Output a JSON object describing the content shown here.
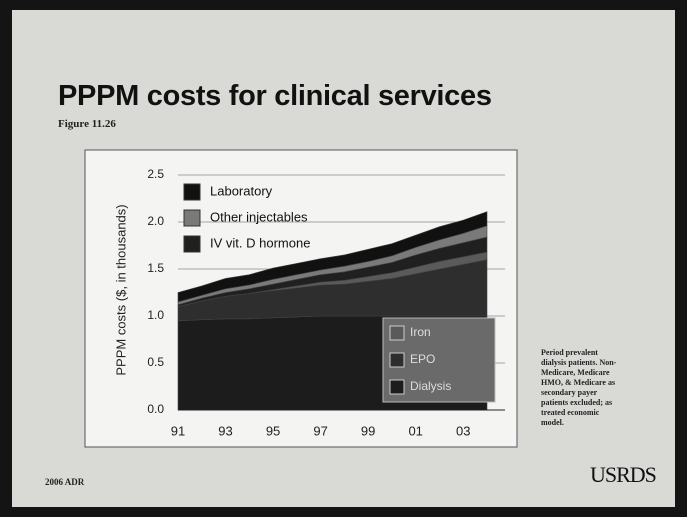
{
  "title": "PPPM costs for clinical services",
  "figure": "Figure 11.26",
  "note": [
    "Period prevalent",
    "dialysis patients. Non-",
    "Medicare, Medicare",
    "HMO, & Medicare as",
    "secondary payer",
    "patients excluded; as",
    "treated economic",
    "model."
  ],
  "footer": "2006 ADR",
  "logo": "USRDS",
  "chart_data": {
    "type": "stacked_area",
    "ylabel": "PPPM costs ($, in thousands)",
    "categories": [
      "91",
      null,
      "93",
      null,
      "95",
      null,
      "97",
      null,
      "99",
      null,
      "01",
      null,
      "03",
      null
    ],
    "ylim": [
      0,
      2.5
    ],
    "yticks": [
      {
        "value": 0,
        "label": "0.0"
      },
      0.5,
      {
        "value": 1,
        "label": "1.0"
      },
      1.5,
      {
        "value": 2,
        "label": "2.0"
      },
      2.5
    ],
    "grid": true,
    "series": [
      {
        "name": "Dialysis",
        "color": "#1c1c1c",
        "values": [
          0.95,
          0.96,
          0.97,
          0.97,
          0.98,
          0.99,
          1.0,
          1.0,
          1.0,
          1.0,
          1.0,
          1.0,
          1.0,
          1.0
        ]
      },
      {
        "name": "EPO",
        "color": "#2e2e2e",
        "values": [
          0.15,
          0.2,
          0.24,
          0.27,
          0.29,
          0.31,
          0.33,
          0.34,
          0.37,
          0.4,
          0.45,
          0.5,
          0.55,
          0.6
        ]
      },
      {
        "name": "Iron",
        "color": "#5a5a5a",
        "values": [
          0,
          0,
          0,
          0,
          0.01,
          0.02,
          0.03,
          0.04,
          0.05,
          0.06,
          0.07,
          0.08,
          0.08,
          0.08
        ]
      },
      {
        "name": "IV vit. D hormone",
        "color": "#202020",
        "values": [
          0.02,
          0.03,
          0.04,
          0.05,
          0.06,
          0.07,
          0.08,
          0.09,
          0.1,
          0.11,
          0.13,
          0.14,
          0.15,
          0.16
        ]
      },
      {
        "name": "Other injectables",
        "color": "#7a7a7a",
        "values": [
          0.03,
          0.03,
          0.04,
          0.04,
          0.05,
          0.05,
          0.05,
          0.06,
          0.06,
          0.07,
          0.08,
          0.09,
          0.1,
          0.12
        ]
      },
      {
        "name": "Laboratory",
        "color": "#111111",
        "values": [
          0.1,
          0.1,
          0.11,
          0.11,
          0.12,
          0.12,
          0.12,
          0.12,
          0.13,
          0.13,
          0.13,
          0.14,
          0.14,
          0.15
        ]
      }
    ]
  }
}
